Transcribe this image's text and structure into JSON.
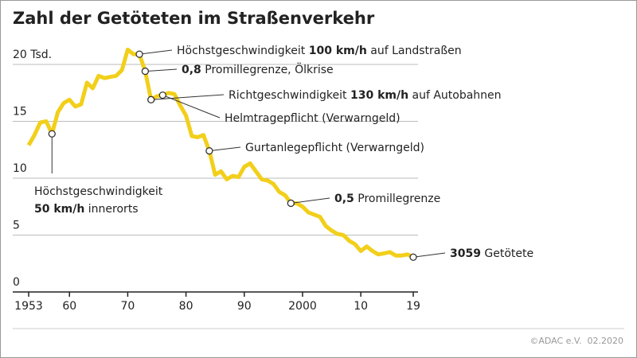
{
  "chart_data": {
    "type": "line",
    "title": "Zahl der Getöteten im Straßenverkehr",
    "source": "©ADAC e.V.  02.2020",
    "x": [
      1953,
      1954,
      1955,
      1956,
      1957,
      1958,
      1959,
      1960,
      1961,
      1962,
      1963,
      1964,
      1965,
      1966,
      1967,
      1968,
      1969,
      1970,
      1971,
      1972,
      1973,
      1974,
      1975,
      1976,
      1977,
      1978,
      1979,
      1980,
      1981,
      1982,
      1983,
      1984,
      1985,
      1986,
      1987,
      1988,
      1989,
      1990,
      1991,
      1992,
      1993,
      1994,
      1995,
      1996,
      1997,
      1998,
      1999,
      2000,
      2001,
      2002,
      2003,
      2004,
      2005,
      2006,
      2007,
      2008,
      2009,
      2010,
      2011,
      2012,
      2013,
      2014,
      2015,
      2016,
      2017,
      2018,
      2019
    ],
    "series": [
      {
        "name": "Getötete",
        "color": "#f2cf1a",
        "values": [
          12.9,
          13.8,
          14.9,
          15.0,
          13.9,
          15.8,
          16.6,
          16.9,
          16.3,
          16.5,
          18.4,
          17.9,
          19.0,
          18.8,
          18.9,
          19.0,
          19.5,
          21.3,
          20.9,
          20.9,
          19.4,
          16.9,
          17.2,
          17.3,
          17.5,
          17.4,
          16.4,
          15.5,
          13.7,
          13.6,
          13.8,
          12.4,
          10.3,
          10.6,
          9.9,
          10.2,
          10.1,
          11.0,
          11.3,
          10.6,
          9.9,
          9.8,
          9.5,
          8.8,
          8.5,
          7.8,
          7.8,
          7.5,
          7.0,
          6.8,
          6.6,
          5.8,
          5.4,
          5.1,
          5.0,
          4.5,
          4.2,
          3.6,
          4.0,
          3.6,
          3.3,
          3.4,
          3.5,
          3.2,
          3.2,
          3.3,
          3.059
        ]
      }
    ],
    "xlim": [
      1953,
      2019
    ],
    "xticks": [
      1953,
      {
        "value": 1960,
        "label": "60"
      },
      {
        "value": 1970,
        "label": "70"
      },
      {
        "value": 1980,
        "label": "80"
      },
      {
        "value": 1990,
        "label": "90"
      },
      2000,
      {
        "value": 2010,
        "label": "10"
      },
      {
        "value": 2019,
        "label": "19"
      }
    ],
    "ylim": [
      0,
      20
    ],
    "yticks": [
      0,
      5,
      10,
      15,
      {
        "value": 20,
        "label": "20 Tsd."
      }
    ],
    "grid": true,
    "annotations": [
      {
        "x": 1957,
        "lines": [
          [
            {
              "text": "Höchstgeschwindigkeit"
            }
          ],
          [
            {
              "text": "50 km/h",
              "bold": true
            },
            {
              "text": " innerorts"
            }
          ]
        ]
      },
      {
        "x": 1972,
        "lines": [
          [
            {
              "text": "Höchstgeschwindigkeit "
            },
            {
              "text": "100 km/h",
              "bold": true
            },
            {
              "text": " auf Landstraßen"
            }
          ]
        ]
      },
      {
        "x": 1973,
        "lines": [
          [
            {
              "text": "0,8",
              "bold": true
            },
            {
              "text": " Promillegrenze, Ölkrise"
            }
          ]
        ]
      },
      {
        "x": 1974,
        "lines": [
          [
            {
              "text": "Richtgeschwindigkeit "
            },
            {
              "text": "130 km/h",
              "bold": true
            },
            {
              "text": " auf Autobahnen"
            }
          ]
        ]
      },
      {
        "x": 1976,
        "lines": [
          [
            {
              "text": "Helmtragepflicht (Verwarngeld)"
            }
          ]
        ]
      },
      {
        "x": 1984,
        "lines": [
          [
            {
              "text": "Gurtanlegepflicht (Verwarngeld)"
            }
          ]
        ]
      },
      {
        "x": 1998,
        "lines": [
          [
            {
              "text": "0,5",
              "bold": true
            },
            {
              "text": " Promillegrenze"
            }
          ]
        ]
      },
      {
        "x": 2019,
        "lines": [
          [
            {
              "text": "3059",
              "bold": true
            },
            {
              "text": " Getötete"
            }
          ]
        ]
      }
    ]
  }
}
